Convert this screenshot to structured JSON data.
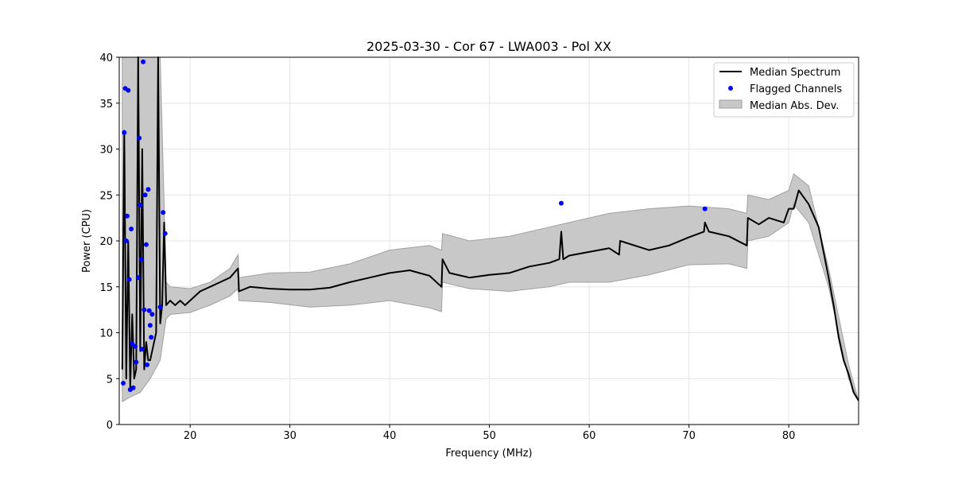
{
  "chart_data": {
    "type": "line",
    "title": "2025-03-30 - Cor 67 - LWA003 - Pol XX",
    "xlabel": "Frequency (MHz)",
    "ylabel": "Power (CPU)",
    "xlim": [
      12.9,
      87.0
    ],
    "ylim": [
      0,
      40
    ],
    "xticks": [
      20,
      30,
      40,
      50,
      60,
      70,
      80
    ],
    "yticks": [
      0,
      5,
      10,
      15,
      20,
      25,
      30,
      35,
      40
    ],
    "grid": true,
    "legend_position": "top-right",
    "colors": {
      "median": "#000000",
      "flagged": "#0000ff",
      "band_fill": "#c8c8c8",
      "band_edge": "#a0a0a0",
      "grid": "#e6e6e6"
    },
    "series": [
      {
        "name": "Median Spectrum",
        "kind": "line",
        "x": [
          13.2,
          13.4,
          13.6,
          13.8,
          14.0,
          14.2,
          14.4,
          14.6,
          14.8,
          15.0,
          15.2,
          15.4,
          15.6,
          15.8,
          16.0,
          16.2,
          16.4,
          16.6,
          16.8,
          17.0,
          17.2,
          17.4,
          17.6,
          18.0,
          18.5,
          19.0,
          19.5,
          20.0,
          21.0,
          22.0,
          23.0,
          24.0,
          24.8,
          24.9,
          26.0,
          28.0,
          30.0,
          32.0,
          34.0,
          36.0,
          38.0,
          40.0,
          42.0,
          44.0,
          45.2,
          45.3,
          46.0,
          48.0,
          50.0,
          52.0,
          54.0,
          56.0,
          57.0,
          57.2,
          57.4,
          58.0,
          60.0,
          62.0,
          63.0,
          63.1,
          66.0,
          68.0,
          70.0,
          71.5,
          71.6,
          72.0,
          74.0,
          75.8,
          75.9,
          77.0,
          78.0,
          79.5,
          80.0,
          80.5,
          81.0,
          82.0,
          83.0,
          84.0,
          84.5,
          85.0,
          85.5,
          86.0,
          86.5,
          87.0
        ],
        "values": [
          6.0,
          32.0,
          5.0,
          20.0,
          4.0,
          12.0,
          5.0,
          6.0,
          40.0,
          8.0,
          30.0,
          6.0,
          9.0,
          7.0,
          7.0,
          8.0,
          9.0,
          10.0,
          40.0,
          11.0,
          13.0,
          22.0,
          13.0,
          13.5,
          13.0,
          13.5,
          13.0,
          13.5,
          14.5,
          15.0,
          15.5,
          16.0,
          17.0,
          14.5,
          15.0,
          14.8,
          14.7,
          14.7,
          14.9,
          15.5,
          16.0,
          16.5,
          16.8,
          16.2,
          15.0,
          18.0,
          16.5,
          16.0,
          16.3,
          16.5,
          17.2,
          17.6,
          18.0,
          21.0,
          18.0,
          18.4,
          18.8,
          19.2,
          18.5,
          20.0,
          19.0,
          19.5,
          20.4,
          21.0,
          22.0,
          21.0,
          20.5,
          19.5,
          22.5,
          21.8,
          22.5,
          22.0,
          23.5,
          23.5,
          25.5,
          24.0,
          21.5,
          16.0,
          13.0,
          9.5,
          7.0,
          5.5,
          3.5,
          2.6
        ]
      },
      {
        "name": "Flagged Channels",
        "kind": "scatter",
        "x": [
          13.3,
          13.4,
          13.5,
          13.6,
          13.7,
          13.8,
          13.9,
          14.0,
          14.1,
          14.2,
          14.3,
          14.5,
          14.6,
          14.8,
          14.9,
          15.0,
          15.1,
          15.2,
          15.3,
          15.4,
          15.5,
          15.6,
          15.7,
          15.8,
          15.9,
          16.0,
          16.1,
          16.2,
          17.0,
          17.3,
          17.5,
          57.2,
          71.6
        ],
        "values": [
          4.5,
          31.8,
          36.6,
          20.0,
          22.7,
          36.4,
          15.8,
          3.8,
          21.3,
          8.8,
          4.0,
          8.5,
          6.8,
          16.0,
          31.2,
          23.9,
          18.0,
          8.2,
          39.5,
          12.5,
          25.0,
          19.6,
          6.5,
          25.6,
          12.4,
          10.8,
          9.5,
          12.0,
          12.8,
          23.1,
          20.8,
          24.1,
          23.5
        ]
      },
      {
        "name": "Median Abs. Dev.",
        "kind": "band",
        "x": [
          13.2,
          14.0,
          15.0,
          16.0,
          17.0,
          17.6,
          18.0,
          20.0,
          22.0,
          24.0,
          24.8,
          24.9,
          28.0,
          32.0,
          36.0,
          40.0,
          44.0,
          45.2,
          45.3,
          48.0,
          52.0,
          56.0,
          58.0,
          62.0,
          66.0,
          70.0,
          74.0,
          75.8,
          75.9,
          78.0,
          80.0,
          80.5,
          82.0,
          84.0,
          86.0,
          87.0
        ],
        "lower": [
          2.5,
          3.0,
          3.5,
          5.0,
          7.0,
          11.5,
          12.0,
          12.2,
          13.0,
          14.0,
          14.8,
          13.5,
          13.3,
          12.8,
          13.0,
          13.5,
          12.7,
          12.3,
          15.5,
          14.8,
          14.5,
          15.0,
          15.5,
          15.5,
          16.3,
          17.4,
          17.5,
          17.0,
          20.0,
          20.5,
          22.0,
          24.0,
          22.0,
          15.0,
          5.0,
          2.6
        ],
        "upper": [
          40.0,
          40.0,
          40.0,
          40.0,
          40.0,
          15.5,
          15.0,
          14.8,
          15.5,
          17.0,
          18.5,
          16.0,
          16.5,
          16.6,
          17.5,
          19.0,
          19.5,
          19.0,
          20.8,
          20.0,
          20.5,
          21.5,
          22.0,
          23.0,
          23.5,
          23.8,
          23.5,
          23.0,
          25.0,
          24.5,
          25.5,
          27.3,
          26.0,
          17.0,
          6.5,
          2.6
        ]
      }
    ]
  }
}
